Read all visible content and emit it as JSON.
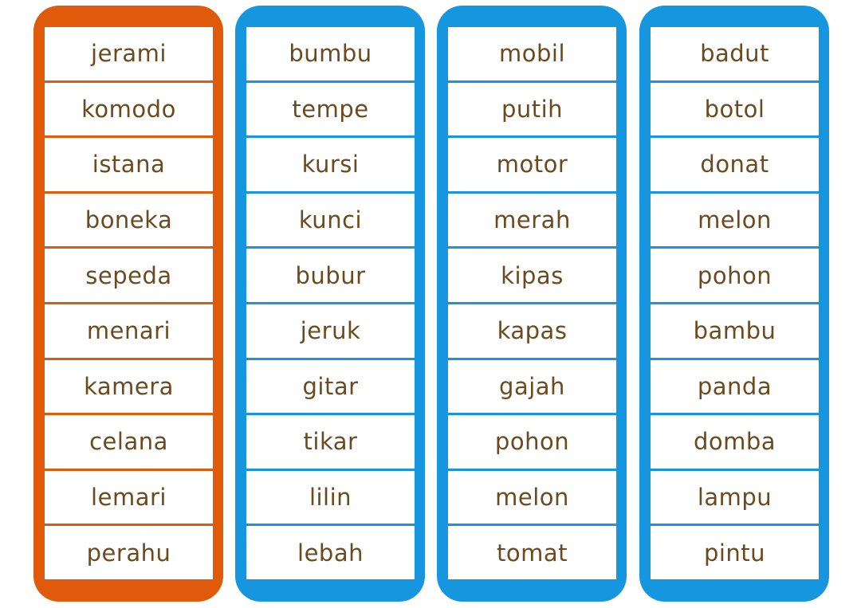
{
  "colors": {
    "orange": "#e05a0c",
    "blue": "#1596de",
    "text": "#6b4a1f"
  },
  "columns": [
    {
      "color": "orange",
      "words": [
        "jerami",
        "komodo",
        "istana",
        "boneka",
        "sepeda",
        "menari",
        "kamera",
        "celana",
        "lemari",
        "perahu"
      ]
    },
    {
      "color": "blue",
      "words": [
        "bumbu",
        "tempe",
        "kursi",
        "kunci",
        "bubur",
        "jeruk",
        "gitar",
        "tikar",
        "lilin",
        "lebah"
      ]
    },
    {
      "color": "blue",
      "words": [
        "mobil",
        "putih",
        "motor",
        "merah",
        "kipas",
        "kapas",
        "gajah",
        "pohon",
        "melon",
        "tomat"
      ]
    },
    {
      "color": "blue",
      "words": [
        "badut",
        "botol",
        "donat",
        "melon",
        "pohon",
        "bambu",
        "panda",
        "domba",
        "lampu",
        "pintu"
      ]
    }
  ]
}
